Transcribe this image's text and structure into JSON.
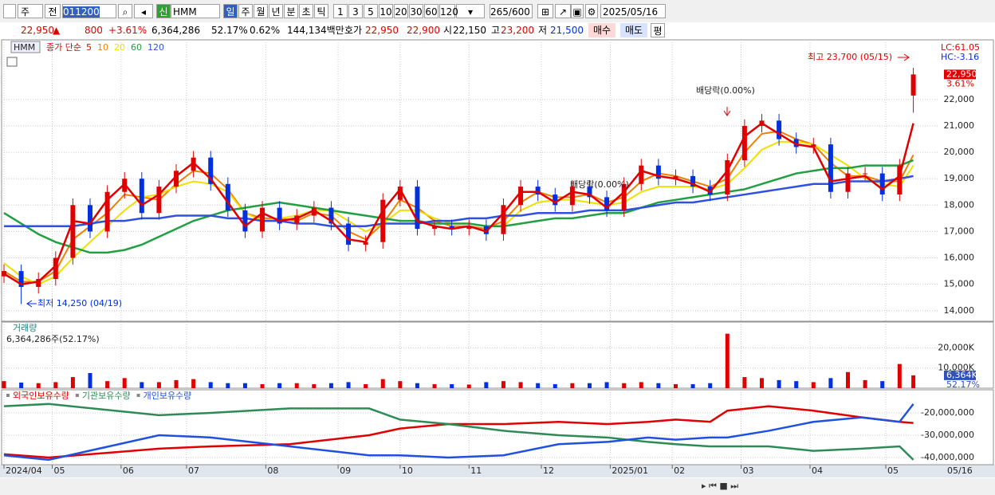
{
  "toolbar": {
    "market": "주",
    "prev": "전",
    "code": "011200",
    "new": "신",
    "name": "HMM",
    "periods": [
      "일",
      "주",
      "월",
      "년",
      "분",
      "초",
      "틱"
    ],
    "intervals": [
      "1",
      "3",
      "5",
      "10",
      "20",
      "30",
      "60",
      "120"
    ],
    "count": "265",
    "total": "/600",
    "date": "2025/05/16"
  },
  "quote": {
    "price": "22,950",
    "arrow": "▲",
    "change": "800",
    "rate": "+3.61%",
    "volume": "6,364,286",
    "volume_ratio": "52.17%",
    "turnover": "0.62%",
    "amount": "144,134백만",
    "bid_label": "호가",
    "ask": "22,950",
    "bid": "22,900",
    "open_label": "시",
    "open": "22,150",
    "high_label": "고",
    "high": "23,200",
    "low_label": "저",
    "low": "21,500",
    "buy": "매수",
    "sell": "매도",
    "avg": "평"
  },
  "chart_data": [
    {
      "type": "candlestick",
      "title": "HMM",
      "ma_label": "종가 단순",
      "x": [
        0,
        5,
        10,
        15,
        20,
        25,
        30,
        35,
        40,
        45,
        50,
        55,
        60,
        65,
        70,
        75,
        80,
        85,
        90,
        95,
        100,
        105,
        110,
        115,
        120,
        125,
        130,
        135,
        140,
        145,
        150,
        155,
        160,
        165,
        170,
        175,
        180,
        185,
        190,
        195,
        200,
        205,
        210,
        215,
        220,
        225,
        230,
        235,
        240,
        245,
        250,
        255,
        260,
        264
      ],
      "open": [
        15300,
        15500,
        14900,
        15200,
        16000,
        18000,
        17000,
        18500,
        19000,
        17700,
        18700,
        19300,
        19800,
        18800,
        17800,
        17000,
        17900,
        17300,
        17600,
        17900,
        17300,
        16500,
        16600,
        18200,
        18700,
        17100,
        17200,
        17100,
        17200,
        16900,
        18000,
        18700,
        18400,
        18000,
        18700,
        18300,
        17800,
        18800,
        19500,
        19000,
        19100,
        18700,
        18400,
        19700,
        21000,
        21200,
        20500,
        20200,
        20300,
        18500,
        19200,
        19200,
        18400,
        22150
      ],
      "high": [
        15750,
        15750,
        15450,
        16250,
        18250,
        18250,
        18750,
        19250,
        19250,
        18950,
        19550,
        20050,
        20050,
        19050,
        18050,
        18150,
        18150,
        17850,
        18150,
        18150,
        17550,
        16850,
        18450,
        18950,
        18950,
        17450,
        17450,
        17450,
        17450,
        18250,
        18950,
        18950,
        18650,
        18950,
        18950,
        18550,
        19050,
        19750,
        19750,
        19350,
        19350,
        18950,
        19950,
        21250,
        21450,
        21450,
        20750,
        20550,
        20550,
        19450,
        19450,
        19450,
        19750,
        23200
      ],
      "low": [
        15050,
        14250,
        14650,
        14950,
        15750,
        16750,
        16750,
        18250,
        17450,
        17450,
        18450,
        19050,
        18550,
        17550,
        16750,
        16750,
        17050,
        17050,
        17350,
        17050,
        16250,
        16250,
        16350,
        17950,
        16850,
        16850,
        16850,
        16850,
        16650,
        16650,
        17750,
        18150,
        17750,
        17750,
        18050,
        17550,
        17550,
        18550,
        18750,
        18750,
        18450,
        18150,
        18150,
        19450,
        20750,
        20250,
        19950,
        19950,
        18250,
        18250,
        18950,
        18150,
        18150,
        21500
      ],
      "close": [
        15500,
        14900,
        15200,
        16000,
        18000,
        17000,
        18500,
        19000,
        17700,
        18700,
        19300,
        19800,
        18800,
        17800,
        17000,
        17900,
        17300,
        17600,
        17900,
        17300,
        16500,
        16600,
        18200,
        18700,
        17100,
        17200,
        17100,
        17200,
        16900,
        18000,
        18700,
        18400,
        18000,
        18700,
        18300,
        17800,
        18800,
        19500,
        19000,
        19100,
        18700,
        18400,
        19700,
        21000,
        21200,
        20500,
        20200,
        20300,
        18500,
        19200,
        19200,
        18400,
        19500,
        22950
      ],
      "up_color": "#e00000",
      "down_color": "#0030e0",
      "series": [
        {
          "name": "5",
          "color": "#e00000",
          "values": [
            15400,
            15000,
            15100,
            15700,
            17400,
            17300,
            18200,
            18800,
            18000,
            18400,
            19100,
            19600,
            19000,
            18100,
            17200,
            17700,
            17400,
            17500,
            17800,
            17400,
            16700,
            16600,
            17800,
            18600,
            17400,
            17200,
            17100,
            17200,
            17000,
            17700,
            18500,
            18500,
            18100,
            18500,
            18400,
            17900,
            18500,
            19300,
            19100,
            19000,
            18800,
            18500,
            19300,
            20600,
            21100,
            20700,
            20300,
            20200,
            18900,
            19000,
            19100,
            18600,
            19100,
            21100
          ]
        },
        {
          "name": "10",
          "color": "#f08000",
          "values": [
            15500,
            15100,
            15100,
            15500,
            16700,
            17200,
            17700,
            18400,
            18300,
            18200,
            18800,
            19300,
            19200,
            18600,
            17700,
            17500,
            17500,
            17400,
            17700,
            17600,
            17000,
            16700,
            17300,
            18200,
            17900,
            17400,
            17200,
            17200,
            17100,
            17400,
            18100,
            18500,
            18300,
            18300,
            18400,
            18100,
            18300,
            18900,
            19200,
            19100,
            18900,
            18700,
            19000,
            20000,
            20700,
            20800,
            20500,
            20300,
            19600,
            19100,
            19100,
            18900,
            18900,
            19900
          ]
        },
        {
          "name": "20",
          "color": "#f0e000",
          "values": [
            15800,
            15300,
            15000,
            15300,
            16000,
            16600,
            17200,
            17800,
            18300,
            18400,
            18700,
            18900,
            18800,
            18500,
            17700,
            17400,
            17500,
            17600,
            17800,
            17800,
            17400,
            17000,
            17300,
            17800,
            17800,
            17500,
            17300,
            17300,
            17200,
            17200,
            17800,
            18100,
            18200,
            18200,
            18100,
            18000,
            18100,
            18500,
            18700,
            18700,
            18700,
            18600,
            18800,
            19400,
            20100,
            20400,
            20400,
            20300,
            19900,
            19500,
            19000,
            18800,
            18700,
            19500
          ]
        },
        {
          "name": "60",
          "color": "#20a040",
          "values": [
            17700,
            17300,
            16900,
            16600,
            16400,
            16200,
            16200,
            16300,
            16500,
            16800,
            17100,
            17400,
            17600,
            17800,
            17900,
            18000,
            18100,
            18000,
            17900,
            17800,
            17700,
            17600,
            17500,
            17400,
            17400,
            17300,
            17300,
            17300,
            17200,
            17200,
            17300,
            17400,
            17500,
            17500,
            17600,
            17700,
            17700,
            17900,
            18100,
            18200,
            18300,
            18400,
            18500,
            18600,
            18800,
            19000,
            19200,
            19300,
            19400,
            19400,
            19500,
            19500,
            19500,
            19700
          ]
        },
        {
          "name": "120",
          "color": "#3050e0",
          "values": [
            17200,
            17200,
            17200,
            17200,
            17200,
            17300,
            17400,
            17400,
            17500,
            17500,
            17600,
            17600,
            17600,
            17500,
            17500,
            17400,
            17400,
            17300,
            17300,
            17200,
            17200,
            17200,
            17300,
            17300,
            17300,
            17400,
            17400,
            17500,
            17500,
            17600,
            17600,
            17700,
            17700,
            17700,
            17800,
            17800,
            17800,
            17900,
            18000,
            18100,
            18100,
            18200,
            18300,
            18400,
            18500,
            18600,
            18700,
            18800,
            18800,
            18900,
            18900,
            18900,
            19000,
            19100
          ]
        }
      ],
      "xlim": [
        0,
        271.5
      ],
      "xticks": [
        {
          "value": 0,
          "label": "2024/04"
        },
        {
          "value": 14,
          "label": "05"
        },
        {
          "value": 34,
          "label": "06"
        },
        {
          "value": 53,
          "label": "07"
        },
        {
          "value": 76,
          "label": "08"
        },
        {
          "value": 97,
          "label": "09"
        },
        {
          "value": 115,
          "label": "10"
        },
        {
          "value": 135,
          "label": "11"
        },
        {
          "value": 156,
          "label": "12"
        },
        {
          "value": 176,
          "label": "2025/01"
        },
        {
          "value": 194,
          "label": "02"
        },
        {
          "value": 214,
          "label": "03"
        },
        {
          "value": 234,
          "label": "04"
        },
        {
          "value": 256,
          "label": "05"
        }
      ],
      "last_date_label": "05/16",
      "ylim": [
        13600,
        24260
      ],
      "yticks": [
        {
          "value": 14000,
          "label": "14,000"
        },
        {
          "value": 15000,
          "label": "15,000"
        },
        {
          "value": 16000,
          "label": "16,000"
        },
        {
          "value": 17000,
          "label": "17,000"
        },
        {
          "value": 18000,
          "label": "18,000"
        },
        {
          "value": 19000,
          "label": "19,000"
        },
        {
          "value": 20000,
          "label": "20,000"
        },
        {
          "value": 21000,
          "label": "21,000"
        },
        {
          "value": 22000,
          "label": "22,000"
        }
      ],
      "grid": true,
      "last_label": "22,950",
      "change_label": "3.61%",
      "lc_label": "LC:61.05",
      "hc_label": "HC:-3.16",
      "annotations": [
        "최고 23,700 (05/15)",
        "최저 14,250 (04/19)",
        "배당락(0.00%)",
        "배당락(0.00%)"
      ]
    },
    {
      "type": "bar",
      "title": "거래량",
      "subtitle": "6,364,286주(52.17%)",
      "x": [
        0,
        5,
        10,
        15,
        20,
        25,
        30,
        35,
        40,
        45,
        50,
        55,
        60,
        65,
        70,
        75,
        80,
        85,
        90,
        95,
        100,
        105,
        110,
        115,
        120,
        125,
        130,
        135,
        140,
        145,
        150,
        155,
        160,
        165,
        170,
        175,
        180,
        185,
        190,
        195,
        200,
        205,
        210,
        215,
        220,
        225,
        230,
        235,
        240,
        245,
        250,
        255,
        260,
        264
      ],
      "values": [
        3500,
        2800,
        2500,
        3000,
        5500,
        7500,
        3500,
        5000,
        3000,
        3000,
        4000,
        4500,
        3000,
        2500,
        2500,
        2000,
        2500,
        2500,
        2000,
        2500,
        3000,
        2000,
        4500,
        3500,
        2500,
        2000,
        2000,
        1800,
        3000,
        3500,
        3000,
        2500,
        2000,
        2500,
        2500,
        3000,
        2500,
        3000,
        2500,
        2000,
        2000,
        2500,
        27000,
        5500,
        5000,
        4000,
        3500,
        3000,
        5000,
        8000,
        4000,
        3500,
        12000,
        6364.286
      ],
      "xlim": [
        0,
        271.5
      ],
      "ylim": [
        0,
        32800
      ],
      "yticks": [
        {
          "value": 10000,
          "label": "10,000K"
        },
        {
          "value": 20000,
          "label": "20,000K"
        }
      ],
      "last_label": "6,364K",
      "ratio_label": "52.17%"
    },
    {
      "type": "line",
      "x": [
        0,
        13,
        45,
        60,
        83,
        106,
        115,
        129,
        145,
        161,
        175,
        187,
        195,
        205,
        210,
        222,
        235,
        249,
        260,
        264
      ],
      "xlim": [
        0,
        271.5
      ],
      "ylim": [
        -43200000,
        -9640000
      ],
      "yticks": [
        {
          "value": -40000000,
          "label": "-40,000,000"
        },
        {
          "value": -30000000,
          "label": "-30,000,000"
        },
        {
          "value": -20000000,
          "label": "-20,000,000"
        }
      ],
      "series": [
        {
          "name": "외국인보유수량",
          "color": "#e00000",
          "values": [
            -38500000,
            -40000000,
            -36000000,
            -35000000,
            -34000000,
            -30000000,
            -27000000,
            -25000000,
            -25000000,
            -24000000,
            -25000000,
            -24000000,
            -23000000,
            -24000000,
            -19000000,
            -17000000,
            -19000000,
            -22000000,
            -24000000,
            -24500000
          ]
        },
        {
          "name": "기관보유수량",
          "color": "#2e8b57",
          "values": [
            -17000000,
            -16000000,
            -21000000,
            -20000000,
            -18000000,
            -18000000,
            -23000000,
            -25000000,
            -28000000,
            -30000000,
            -31000000,
            -33000000,
            -34000000,
            -35000000,
            -35000000,
            -35000000,
            -37000000,
            -36000000,
            -35000000,
            -41000000
          ]
        },
        {
          "name": "개인보유수량",
          "color": "#2050e0",
          "values": [
            -39000000,
            -41000000,
            -30000000,
            -31000000,
            -35000000,
            -39000000,
            -39000000,
            -40000000,
            -39000000,
            -34000000,
            -33000000,
            -31000000,
            -32000000,
            -31000000,
            -31000000,
            -28000000,
            -24000000,
            -22000000,
            -24000000,
            -16000000
          ]
        }
      ]
    }
  ]
}
